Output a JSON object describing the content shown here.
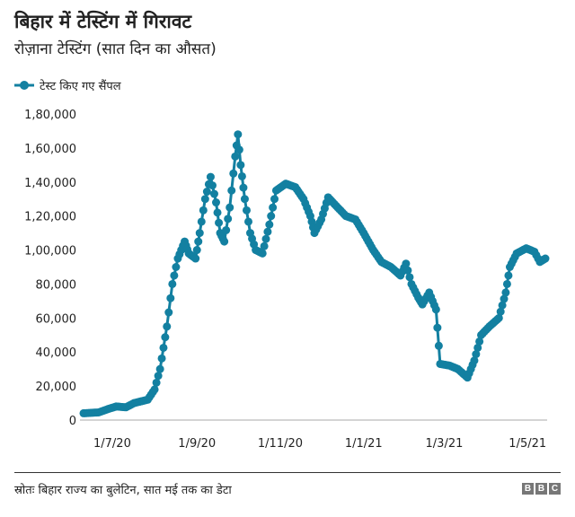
{
  "title": "बिहार में टेस्टिंग में गिरावट",
  "subtitle": "रोज़ाना टेस्टिंग (सात दिन का औसत)",
  "source": "स्रोतः बिहार राज्य का बुलेटिन, सात मई तक का डेटा",
  "logo": "BBC",
  "colors": {
    "series": "#1380a1",
    "axis": "#aaaaaa"
  },
  "chart_data": {
    "type": "line",
    "title": "बिहार में टेस्टिंग में गिरावट",
    "legend": [
      "टेस्ट किए गए सैंपल"
    ],
    "legend_position": "top-left",
    "x_unit": "days since 10 Jun 2020",
    "xlim": [
      0,
      338
    ],
    "ylim": [
      0,
      180000
    ],
    "y_ticks": [
      0,
      20000,
      40000,
      60000,
      80000,
      100000,
      120000,
      140000,
      160000,
      180000
    ],
    "y_tick_labels": [
      "0",
      "20,000",
      "40,000",
      "60,000",
      "80,000",
      "1,00,000",
      "1,20,000",
      "1,40,000",
      "1,60,000",
      "1,80,000"
    ],
    "x_ticks": [
      21,
      83,
      144,
      205,
      264,
      325
    ],
    "x_tick_labels": [
      "1/7/20",
      "1/9/20",
      "1/11/20",
      "1/1/21",
      "1/3/21",
      "1/5/21"
    ],
    "grid": false,
    "series": [
      {
        "name": "टेस्ट किए गए सैंपल",
        "x": [
          0,
          11,
          18,
          24,
          31,
          37,
          47,
          52,
          56,
          61,
          65,
          69,
          74,
          77,
          82,
          85,
          89,
          93,
          97,
          100,
          103,
          107,
          111,
          113,
          115,
          118,
          122,
          126,
          131,
          136,
          141,
          148,
          155,
          161,
          166,
          169,
          174,
          179,
          186,
          192,
          199,
          205,
          212,
          218,
          225,
          232,
          236,
          240,
          245,
          248,
          253,
          258,
          261,
          268,
          274,
          281,
          286,
          291,
          297,
          304,
          309,
          312,
          317,
          324,
          330,
          334,
          338
        ],
        "y": [
          4000,
          4500,
          6500,
          8000,
          7500,
          10000,
          12000,
          18000,
          30000,
          55000,
          80000,
          95000,
          105000,
          98000,
          95000,
          110000,
          130000,
          143000,
          128000,
          110000,
          105000,
          125000,
          155000,
          168000,
          150000,
          130000,
          110000,
          100000,
          98000,
          115000,
          135000,
          139000,
          137000,
          130000,
          120000,
          110000,
          118000,
          131000,
          125000,
          120000,
          118000,
          110000,
          100000,
          93000,
          90000,
          85000,
          92000,
          80000,
          72000,
          68000,
          75000,
          65000,
          33000,
          32000,
          30000,
          25000,
          35000,
          50000,
          55000,
          60000,
          75000,
          90000,
          98000,
          101000,
          99000,
          93000,
          95000
        ]
      }
    ]
  }
}
